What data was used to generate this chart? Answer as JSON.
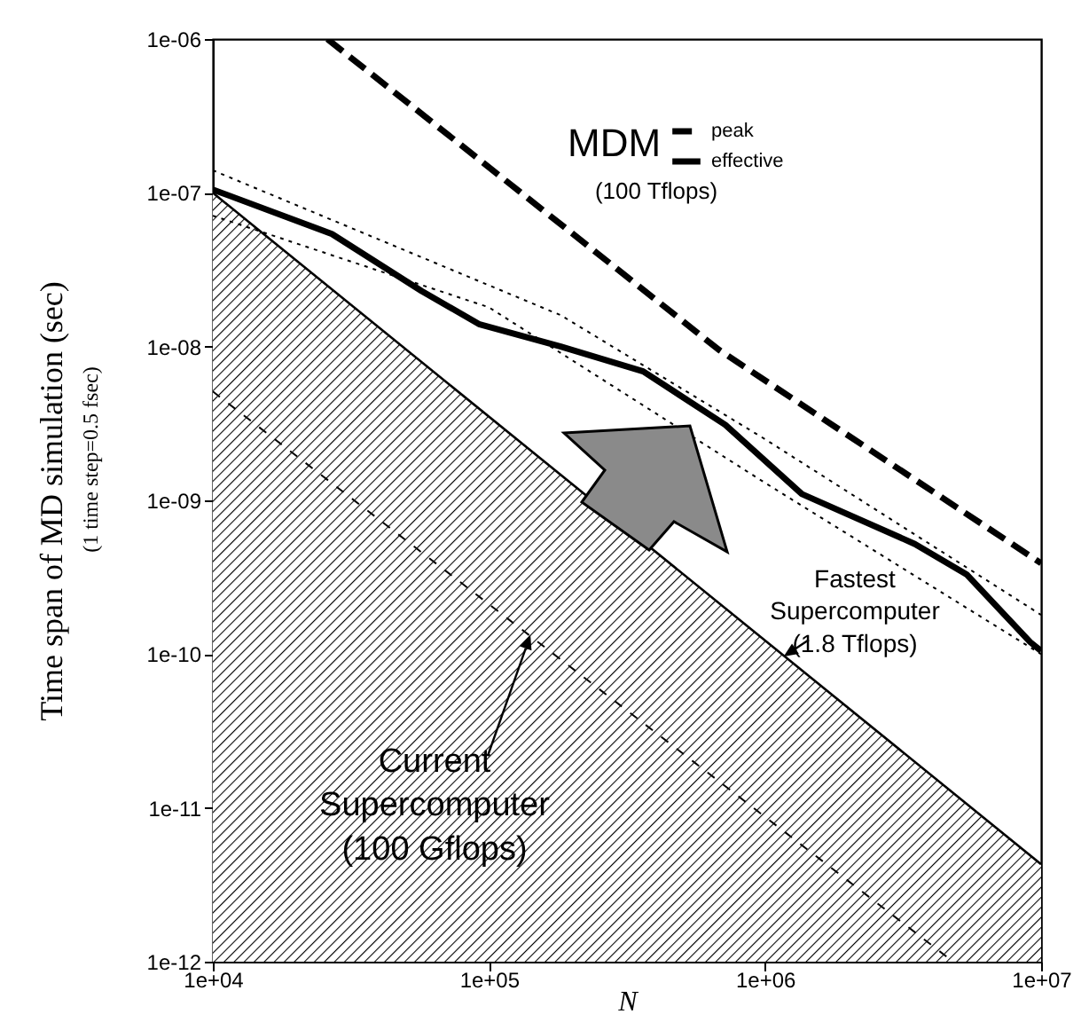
{
  "chart_data": {
    "type": "line",
    "xlabel": "N",
    "ylabel": "Time span of MD simulation (sec)",
    "legend_title": "MDM",
    "legend": "top right",
    "log": "xy",
    "grid": false,
    "annotations": [
      "(100 Tflops)",
      {
        "text": "Fastest\nSupercomputer\n(1.8 Tflops)",
        "x": 1570000,
        "y": 6.3e-11
      },
      {
        "text": "Current\nSupercomputer\n(100 Gflops)",
        "x": 190000,
        "y": 8.7e-11
      },
      "(1 time step=0.5 fsec)"
    ],
    "xlim": [
      10000,
      10000000
    ],
    "xticks": [
      {
        "value": 10000,
        "label": "1e+04"
      },
      {
        "value": 100000,
        "label": "1e+05"
      },
      {
        "value": 1000000,
        "label": "1e+06"
      },
      {
        "value": 10000000,
        "label": "1e+07"
      }
    ],
    "ylim": [
      1e-12,
      1e-06
    ],
    "yticks": [
      {
        "value": 1e-12,
        "label": "1e-12"
      },
      {
        "value": 1e-11,
        "label": "1e-11"
      },
      {
        "value": 1e-10,
        "label": "1e-10"
      },
      {
        "value": 1e-09,
        "label": "1e-09"
      },
      {
        "value": 1e-08,
        "label": "1e-08"
      },
      {
        "value": 1e-07,
        "label": "1e-07"
      },
      {
        "value": 1e-06,
        "label": "1e-06"
      }
    ],
    "series": [
      {
        "name": "peak",
        "type": "line",
        "line_style": "dashed",
        "color": "#000000",
        "x": [
          26000,
          682000,
          10000000
        ],
        "values": [
          1e-06,
          9.5e-09,
          3.9e-10
        ]
      },
      {
        "name": "effective",
        "type": "line",
        "line_style": "solid",
        "color": "#000000",
        "x": [
          10000,
          27000,
          57000,
          92000,
          182000,
          362000,
          718000,
          1360000,
          3490000,
          5370000,
          9120000,
          10000000
        ],
        "values": [
          1.05e-07,
          5.4e-08,
          2.3e-08,
          1.4e-08,
          1e-08,
          6.9e-09,
          3.1e-09,
          1.1e-09,
          5.2e-10,
          3.3e-10,
          1.2e-10,
          1.05e-10
        ]
      },
      {
        "type": "line",
        "line_style": "dotted",
        "color": "#000000",
        "x": [
          10000,
          182000,
          1000000,
          10000000
        ],
        "values": [
          1.4e-07,
          1.6e-08,
          2.5e-09,
          1.8e-10
        ]
      },
      {
        "type": "line",
        "line_style": "dotted",
        "color": "#000000",
        "x": [
          10000,
          100000,
          1000000,
          10000000
        ],
        "values": [
          7.1e-08,
          1.8e-08,
          1.3e-09,
          1e-10
        ]
      },
      {
        "type": "area",
        "line_style": "solid",
        "color": "#000000",
        "x": [
          10000,
          10000000
        ],
        "values": [
          1e-07,
          4.3e-12
        ]
      },
      {
        "type": "line",
        "line_style": "dashed",
        "color": "#000000",
        "x": [
          10000,
          4800000
        ],
        "values": [
          5.1e-09,
          1e-12
        ]
      }
    ]
  }
}
